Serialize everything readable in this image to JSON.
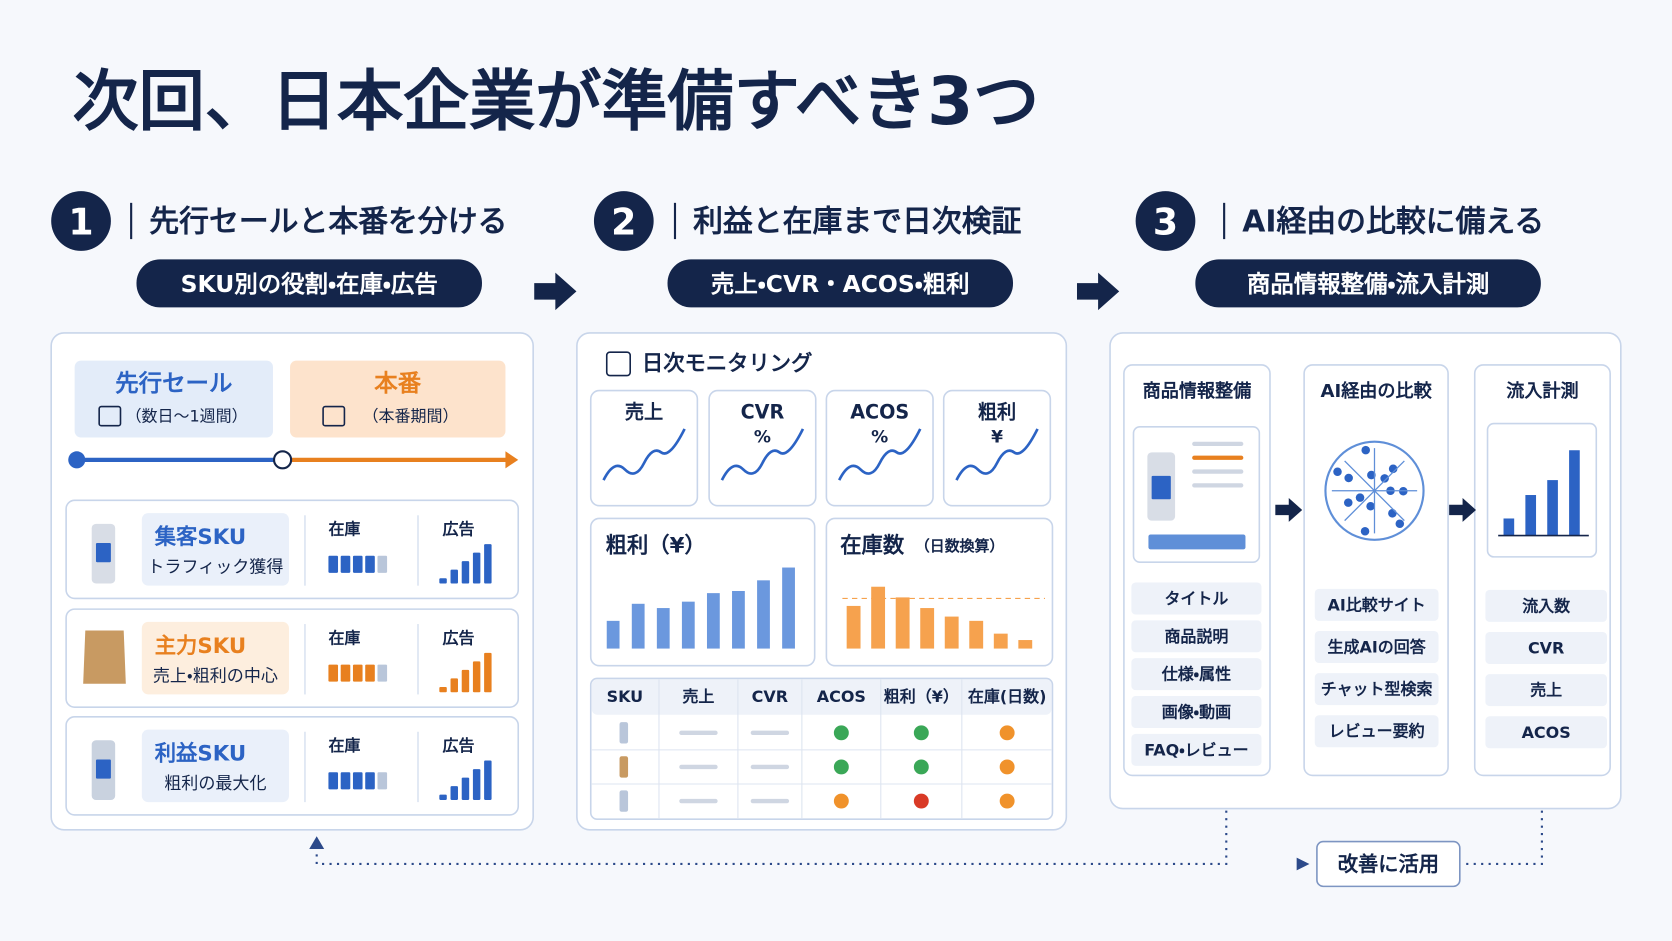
{
  "title": "次回、日本企業が準備すべき3つ",
  "steps": [
    {
      "number": "1",
      "heading": "先行セールと本番を分ける",
      "tag": "SKU別の役割・在庫・広告"
    },
    {
      "number": "2",
      "heading": "利益と在庫まで日次検証",
      "tag": "売上・CVR・ACOS・粗利"
    },
    {
      "number": "3",
      "heading": "AI経由の比較に備える",
      "tag": "商品情報整備・流入計測"
    }
  ],
  "panel1": {
    "phases": [
      {
        "label": "先行セール",
        "period": "（数日〜1週間）"
      },
      {
        "label": "本番",
        "period": "（本番期間）"
      }
    ],
    "stock_label": "在庫",
    "ad_label": "広告",
    "skus": [
      {
        "name": "集客SKU",
        "role": "トラフィック獲得"
      },
      {
        "name": "主力SKU",
        "role": "売上・粗利の中心"
      },
      {
        "name": "利益SKU",
        "role": "粗利の最大化"
      }
    ]
  },
  "panel2": {
    "title": "日次モニタリング",
    "metrics": [
      {
        "name": "売上"
      },
      {
        "name": "CVR",
        "unit": "%"
      },
      {
        "name": "ACOS",
        "unit": "%"
      },
      {
        "name": "粗利",
        "unit": "¥"
      }
    ],
    "gross_title": "粗利（¥）",
    "stock_title": "在庫数",
    "stock_note": "（日数換算）",
    "table": {
      "header": [
        "SKU",
        "売上",
        "CVR",
        "ACOS",
        "粗利（¥）",
        "在庫(日数)"
      ],
      "status_colors": [
        [
          "#3aa757",
          "#3aa757",
          "#f0922b"
        ],
        [
          "#3aa757",
          "#3aa757",
          "#f0922b"
        ],
        [
          "#f0922b",
          "#d93a26",
          "#f0922b"
        ]
      ]
    }
  },
  "panel3": {
    "columns": [
      {
        "title": "商品情報整備",
        "items": [
          "タイトル",
          "商品説明",
          "仕様・属性",
          "画像・動画",
          "FAQ・レビュー"
        ]
      },
      {
        "title": "AI経由の比較",
        "items": [
          "AI比較サイト",
          "生成AIの回答",
          "チャット型検索",
          "レビュー要約"
        ]
      },
      {
        "title": "流入計測",
        "items": [
          "流入数",
          "CVR",
          "売上",
          "ACOS"
        ]
      }
    ]
  },
  "feedback": "改善に活用"
}
